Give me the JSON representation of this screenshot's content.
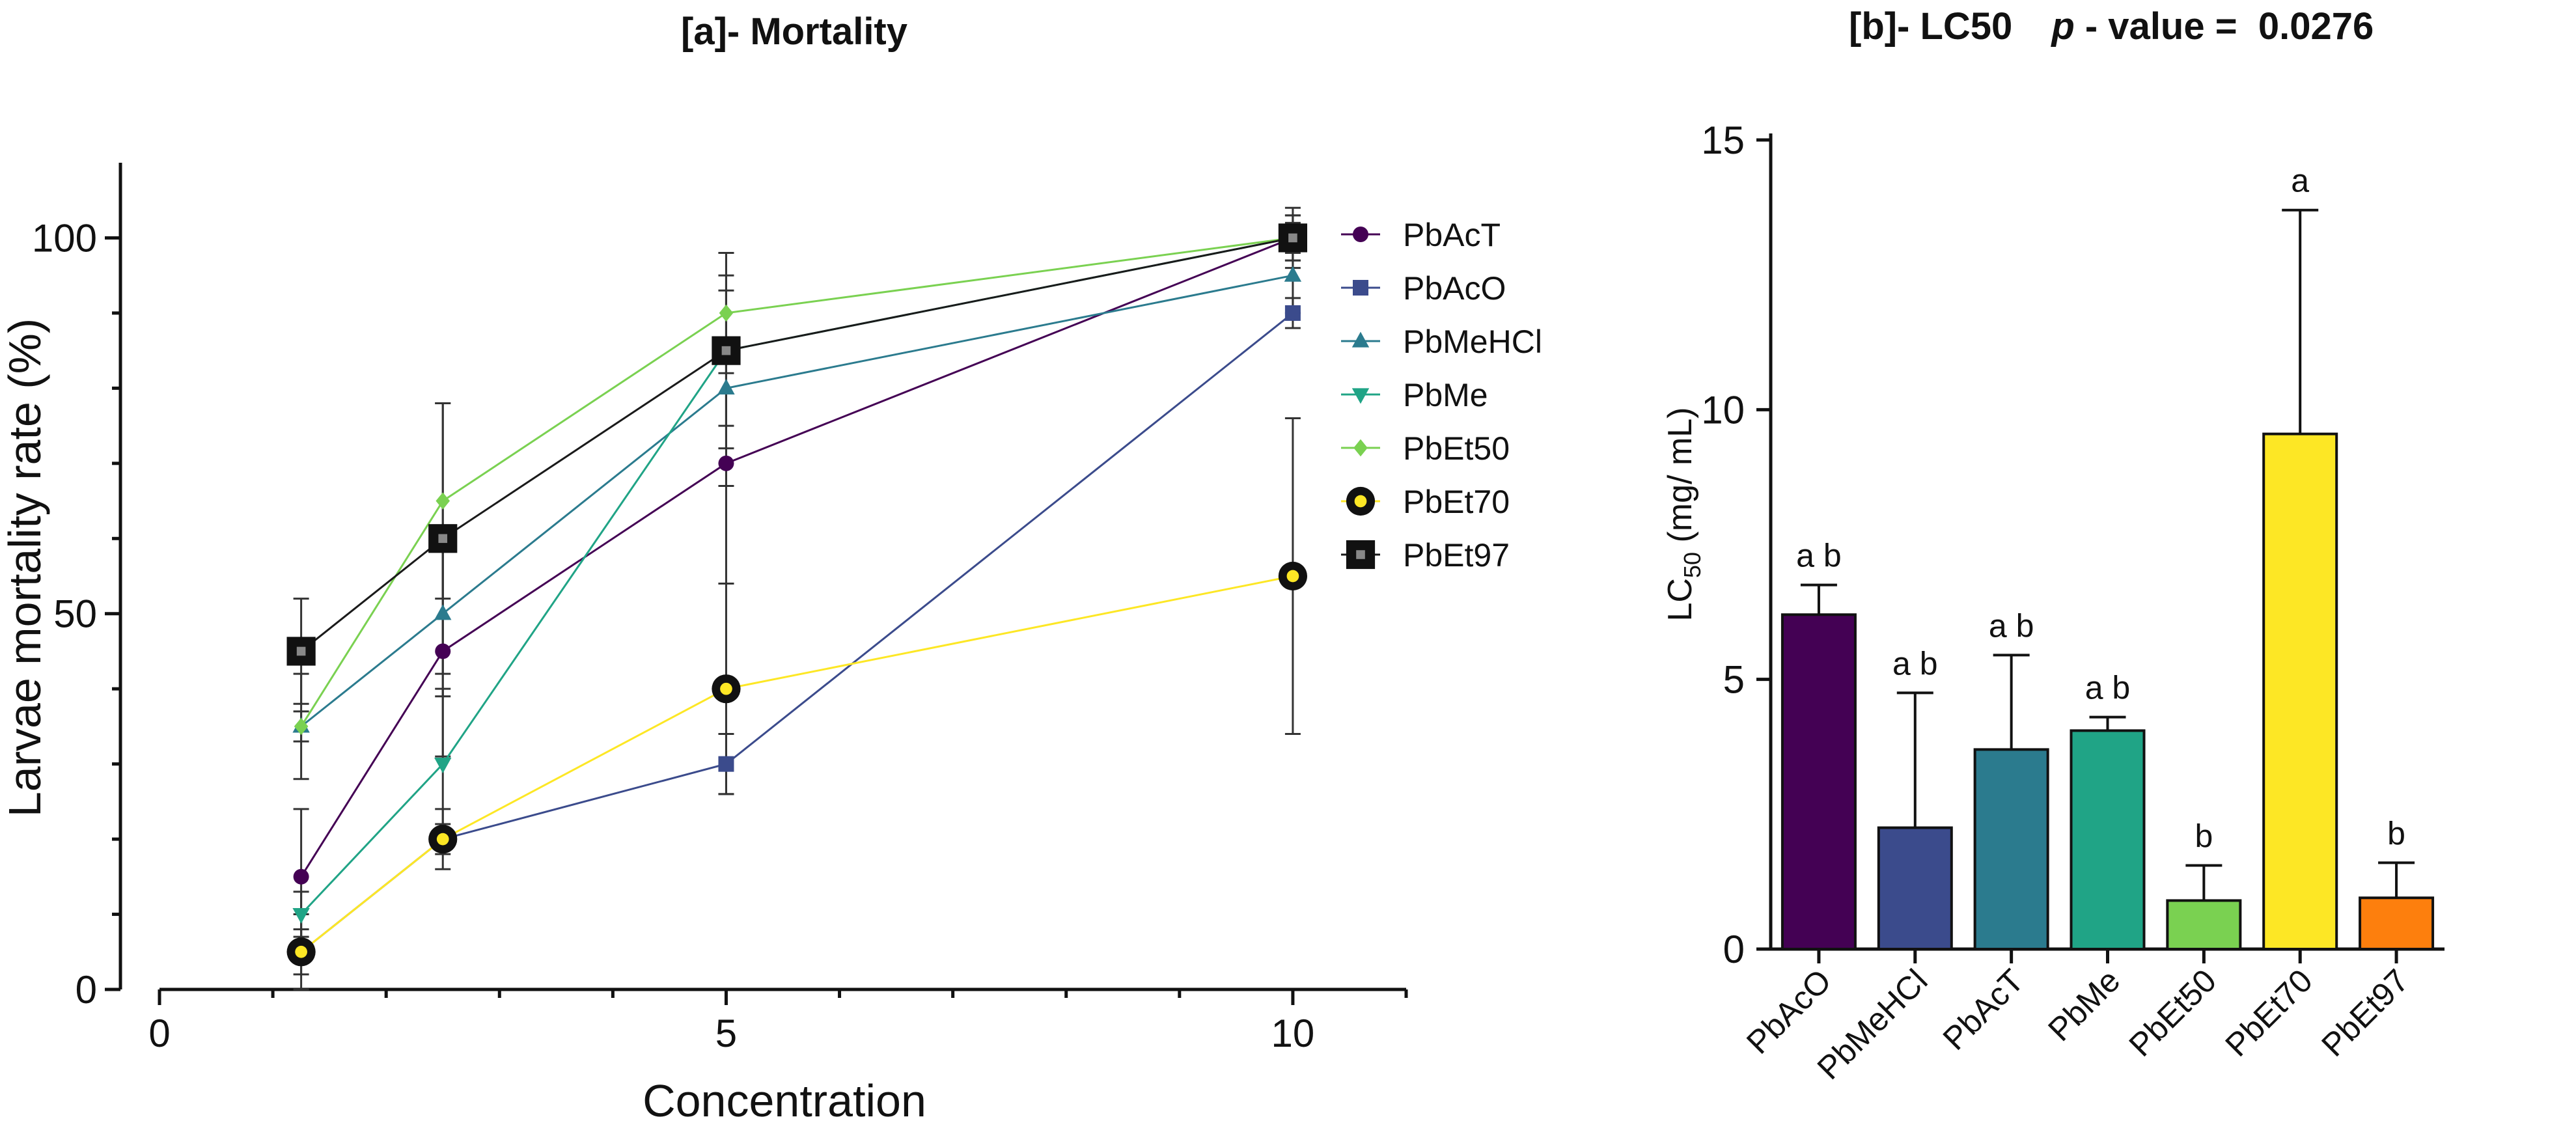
{
  "chart_data": [
    {
      "id": "mortality",
      "type": "line",
      "title": "[a]- Mortality",
      "xlabel": "Concentration",
      "ylabel": "Larvae mortality rate (%)",
      "xlim": [
        0,
        11
      ],
      "ylim": [
        0,
        110
      ],
      "xticks": [
        0,
        5,
        10
      ],
      "yticks": [
        0,
        50,
        100
      ],
      "x": [
        1.25,
        2.5,
        5,
        10
      ],
      "legend_position": "top-right",
      "series": [
        {
          "name": "PbAcT",
          "color": "#440154",
          "marker": "circle",
          "values": [
            15,
            45,
            70,
            100
          ],
          "err": [
            9,
            14,
            16,
            4
          ]
        },
        {
          "name": "PbAcO",
          "color": "#3b4b8c",
          "marker": "square",
          "values": [
            5,
            20,
            30,
            90
          ],
          "err": [
            5,
            2,
            4,
            2
          ]
        },
        {
          "name": "PbMeHCl",
          "color": "#2b7b8e",
          "marker": "triangle-up",
          "values": [
            35,
            50,
            80,
            95
          ],
          "err": [
            7,
            11,
            13,
            5
          ]
        },
        {
          "name": "PbMe",
          "color": "#20a486",
          "marker": "triangle-down",
          "values": [
            10,
            30,
            85,
            100
          ],
          "err": [
            3,
            10,
            10,
            3
          ]
        },
        {
          "name": "PbEt50",
          "color": "#7ad151",
          "marker": "diamond",
          "values": [
            35,
            65,
            90,
            100
          ],
          "err": [
            2,
            13,
            8,
            2
          ]
        },
        {
          "name": "PbEt70",
          "color": "#fde725",
          "marker": "circle-dot",
          "values": [
            5,
            20,
            40,
            55
          ],
          "err": [
            3,
            4,
            14,
            21
          ]
        },
        {
          "name": "PbEt97",
          "color": "#1a1a1a",
          "marker": "square-dot",
          "values": [
            45,
            60,
            85,
            100
          ],
          "err": [
            7,
            18,
            13,
            3
          ]
        }
      ]
    },
    {
      "id": "lc50",
      "type": "bar",
      "title": "[b]- LC50",
      "pvalue_label": "p",
      "pvalue_text": " - value =  0.0276",
      "ylabel_main": "LC",
      "ylabel_sub": "50",
      "ylabel_rest": " (mg/ mL)",
      "ylim": [
        0,
        15
      ],
      "yticks": [
        0,
        5,
        10,
        15
      ],
      "categories": [
        "PbAcO",
        "PbMeHCl",
        "PbAcT",
        "PbMe",
        "PbEt50",
        "PbEt70",
        "PbEt97"
      ],
      "values": [
        6.2,
        2.25,
        3.7,
        4.05,
        0.9,
        9.55,
        0.95
      ],
      "errors": [
        0.55,
        2.5,
        1.75,
        0.25,
        0.65,
        4.15,
        0.65
      ],
      "colors": [
        "#440154",
        "#3b4b8c",
        "#2b7b8e",
        "#20a486",
        "#7ad151",
        "#fde725",
        "#fd7f0d"
      ],
      "significance": [
        "a b",
        "a b",
        "a b",
        "a b",
        "b",
        "a",
        "b"
      ]
    }
  ]
}
